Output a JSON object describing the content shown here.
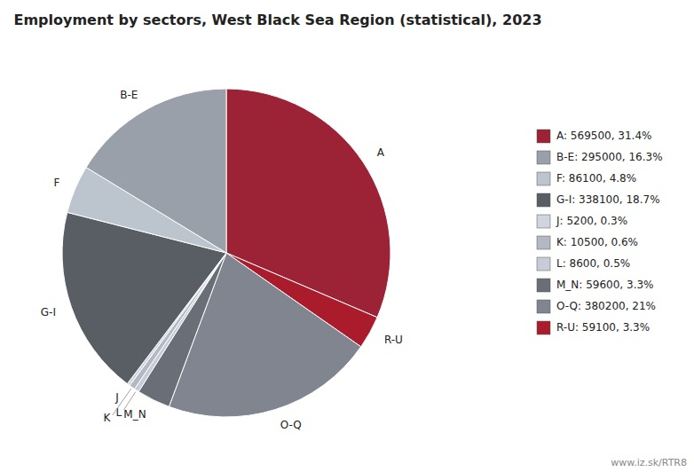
{
  "chart_data": {
    "type": "pie",
    "title": "Employment by sectors, West Black Sea Region (statistical), 2023",
    "categories": [
      "A",
      "R-U",
      "O-Q",
      "M_N",
      "L",
      "K",
      "J",
      "G-I",
      "F",
      "B-E"
    ],
    "values": [
      569500,
      59100,
      380200,
      59600,
      8600,
      10500,
      5200,
      338100,
      86100,
      295000
    ],
    "colors": [
      "#9B2335",
      "#AA1C2C",
      "#808590",
      "#6A6E76",
      "#C8CCD8",
      "#B4B8C4",
      "#D0D4DE",
      "#595E64",
      "#BCC4CE",
      "#9AA0AA"
    ],
    "legend": "right",
    "legend_entries": [
      {
        "name": "A: 569500, 31.4%",
        "color": "#9B2335"
      },
      {
        "name": "B-E: 295000, 16.3%",
        "color": "#9AA0AA"
      },
      {
        "name": "F: 86100, 4.8%",
        "color": "#BCC4CE"
      },
      {
        "name": "G-I: 338100, 18.7%",
        "color": "#595E64"
      },
      {
        "name": "J: 5200, 0.3%",
        "color": "#D0D4DE"
      },
      {
        "name": "K: 10500, 0.6%",
        "color": "#B4B8C4"
      },
      {
        "name": "L: 8600, 0.5%",
        "color": "#C8CCD8"
      },
      {
        "name": "M_N: 59600, 3.3%",
        "color": "#6A6E76"
      },
      {
        "name": "O-Q: 380200, 21%",
        "color": "#808590"
      },
      {
        "name": "R-U: 59100, 3.3%",
        "color": "#AA1C2C"
      }
    ],
    "watermark": "www.iz.sk/RTR8"
  }
}
